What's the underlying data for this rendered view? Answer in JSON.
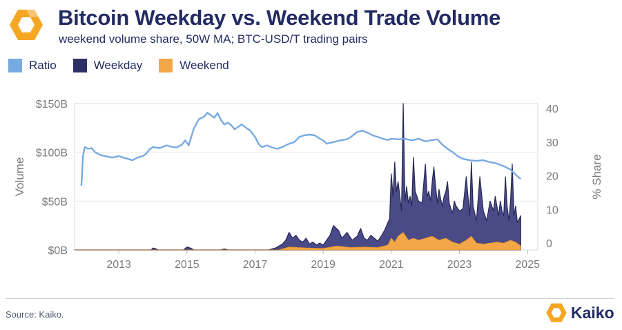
{
  "header": {
    "title": "Bitcoin Weekday vs. Weekend Trade Volume",
    "subtitle": "weekend volume share, 50W MA; BTC-USD/T trading pairs"
  },
  "footer": {
    "source": "Source: Kaiko.",
    "brand": "Kaiko"
  },
  "colors": {
    "ratio": "#77aae3",
    "weekday": "#2e2f65",
    "weekend": "#f4a749",
    "brand_navy": "#232b63",
    "brand_orange": "#f5a623"
  },
  "icons": {
    "logo": "kaiko-logo-icon"
  },
  "chart_data": {
    "type": "area",
    "legend": [
      "Ratio",
      "Weekday",
      "Weekend"
    ],
    "legend_position": "top-left",
    "ylabel": "Volume",
    "ylabel_right": "% Share",
    "y_ticks": [
      "$0B",
      "$50B",
      "$100B",
      "$150B"
    ],
    "y_ticks_right": [
      "0",
      "10",
      "20",
      "30",
      "40"
    ],
    "ylim": [
      0,
      150
    ],
    "ylim_right": [
      0,
      40
    ],
    "xlim": [
      2011.7,
      2025.3
    ],
    "x_ticks": [
      "2013",
      "2015",
      "2017",
      "2019",
      "2021",
      "2023",
      "2025"
    ],
    "grid": true,
    "series": [
      {
        "name": "Ratio",
        "axis": "right",
        "style": "line",
        "x": [
          2011.9,
          2011.95,
          2012.0,
          2012.1,
          2012.2,
          2012.3,
          2012.45,
          2012.6,
          2012.8,
          2013.0,
          2013.2,
          2013.4,
          2013.55,
          2013.7,
          2013.8,
          2013.9,
          2014.0,
          2014.2,
          2014.4,
          2014.55,
          2014.7,
          2014.85,
          2014.95,
          2015.05,
          2015.2,
          2015.35,
          2015.5,
          2015.6,
          2015.7,
          2015.8,
          2015.9,
          2016.0,
          2016.1,
          2016.2,
          2016.3,
          2016.4,
          2016.5,
          2016.6,
          2016.7,
          2016.85,
          2017.0,
          2017.1,
          2017.2,
          2017.35,
          2017.5,
          2017.65,
          2017.8,
          2017.9,
          2018.0,
          2018.15,
          2018.3,
          2018.45,
          2018.6,
          2018.75,
          2018.9,
          2019.0,
          2019.1,
          2019.3,
          2019.5,
          2019.7,
          2019.85,
          2020.0,
          2020.15,
          2020.3,
          2020.45,
          2020.6,
          2020.75,
          2020.9,
          2021.0,
          2021.2,
          2021.4,
          2021.6,
          2021.8,
          2022.0,
          2022.2,
          2022.35,
          2022.5,
          2022.65,
          2022.8,
          2022.95,
          2023.1,
          2023.3,
          2023.5,
          2023.7,
          2023.9,
          2024.05,
          2024.2,
          2024.35,
          2024.5,
          2024.65,
          2024.8
        ],
        "values": [
          17,
          26,
          28.5,
          28,
          28.2,
          27,
          26.2,
          25.8,
          25.4,
          25.8,
          25.2,
          24.6,
          25.4,
          25.8,
          26.5,
          27.8,
          28.5,
          28.2,
          29,
          28.6,
          28.4,
          29.2,
          30.5,
          29,
          34,
          36.8,
          37.5,
          38.7,
          38,
          37.2,
          38.6,
          36.5,
          35.2,
          35.8,
          35,
          33.8,
          34.5,
          35.2,
          34.5,
          33.5,
          31.5,
          29.5,
          28.5,
          29,
          28.4,
          28,
          28.5,
          29,
          29.5,
          30,
          31.5,
          32,
          32.2,
          32,
          31,
          30.5,
          29.5,
          30,
          30.5,
          30.8,
          31.8,
          33,
          33.4,
          32.8,
          32,
          31.5,
          31,
          30.6,
          31,
          30.8,
          31,
          30.5,
          31,
          30.2,
          30.6,
          30.8,
          29.2,
          28,
          27,
          25.8,
          25,
          24.6,
          24.4,
          24.6,
          24,
          23.8,
          23.2,
          22.6,
          21.8,
          20.3,
          19
        ]
      },
      {
        "name": "Weekday",
        "axis": "left",
        "style": "area",
        "x": [
          2011.7,
          2013.95,
          2014.0,
          2014.1,
          2014.15,
          2014.9,
          2015.0,
          2015.1,
          2015.2,
          2016.0,
          2016.1,
          2016.2,
          2017.4,
          2017.6,
          2017.8,
          2017.9,
          2018.0,
          2018.1,
          2018.2,
          2018.3,
          2018.4,
          2018.5,
          2018.6,
          2018.7,
          2018.8,
          2018.9,
          2019.0,
          2019.2,
          2019.3,
          2019.45,
          2019.55,
          2019.7,
          2019.85,
          2020.0,
          2020.1,
          2020.2,
          2020.3,
          2020.4,
          2020.5,
          2020.6,
          2020.7,
          2020.8,
          2020.9,
          2020.95,
          2021.0,
          2021.05,
          2021.1,
          2021.15,
          2021.2,
          2021.25,
          2021.3,
          2021.35,
          2021.4,
          2021.45,
          2021.5,
          2021.55,
          2021.6,
          2021.65,
          2021.7,
          2021.8,
          2021.9,
          2022.0,
          2022.05,
          2022.1,
          2022.15,
          2022.2,
          2022.25,
          2022.3,
          2022.35,
          2022.4,
          2022.45,
          2022.5,
          2022.55,
          2022.6,
          2022.65,
          2022.7,
          2022.75,
          2022.8,
          2022.85,
          2022.9,
          2023.0,
          2023.1,
          2023.2,
          2023.25,
          2023.3,
          2023.35,
          2023.4,
          2023.5,
          2023.6,
          2023.7,
          2023.8,
          2023.9,
          2024.0,
          2024.05,
          2024.1,
          2024.15,
          2024.2,
          2024.25,
          2024.3,
          2024.35,
          2024.4,
          2024.45,
          2024.5,
          2024.55,
          2024.6,
          2024.65,
          2024.7,
          2024.8
        ],
        "values": [
          0,
          0,
          2,
          1,
          0,
          0,
          3,
          2,
          0,
          0,
          1,
          0,
          0,
          2,
          6,
          10,
          18,
          12,
          15,
          10,
          8,
          12,
          6,
          8,
          5,
          7,
          5,
          15,
          25,
          20,
          12,
          18,
          10,
          14,
          22,
          12,
          10,
          15,
          12,
          9,
          14,
          20,
          28,
          32,
          78,
          55,
          90,
          60,
          70,
          55,
          40,
          150,
          50,
          65,
          48,
          55,
          45,
          95,
          60,
          50,
          48,
          88,
          55,
          60,
          50,
          70,
          85,
          65,
          48,
          62,
          52,
          45,
          55,
          60,
          70,
          48,
          42,
          38,
          50,
          45,
          40,
          42,
          75,
          55,
          35,
          90,
          45,
          30,
          75,
          40,
          30,
          50,
          40,
          55,
          45,
          35,
          50,
          40,
          35,
          75,
          45,
          30,
          50,
          88,
          35,
          45,
          28,
          35
        ]
      },
      {
        "name": "Weekend",
        "axis": "left",
        "style": "area",
        "x": [
          2011.7,
          2017.7,
          2018.0,
          2018.5,
          2019.0,
          2019.4,
          2019.8,
          2020.2,
          2020.6,
          2020.9,
          2021.0,
          2021.1,
          2021.2,
          2021.35,
          2021.5,
          2021.65,
          2021.8,
          2022.0,
          2022.2,
          2022.4,
          2022.6,
          2022.8,
          2023.0,
          2023.2,
          2023.35,
          2023.5,
          2023.7,
          2023.9,
          2024.1,
          2024.3,
          2024.5,
          2024.65,
          2024.8
        ],
        "values": [
          0,
          0,
          3,
          2,
          1.5,
          4,
          2.5,
          3,
          2.5,
          5,
          12,
          8,
          14,
          18,
          10,
          12,
          10,
          12,
          14,
          10,
          12,
          8,
          6,
          10,
          14,
          7,
          6,
          7,
          8,
          7,
          10,
          8,
          4
        ]
      }
    ]
  }
}
